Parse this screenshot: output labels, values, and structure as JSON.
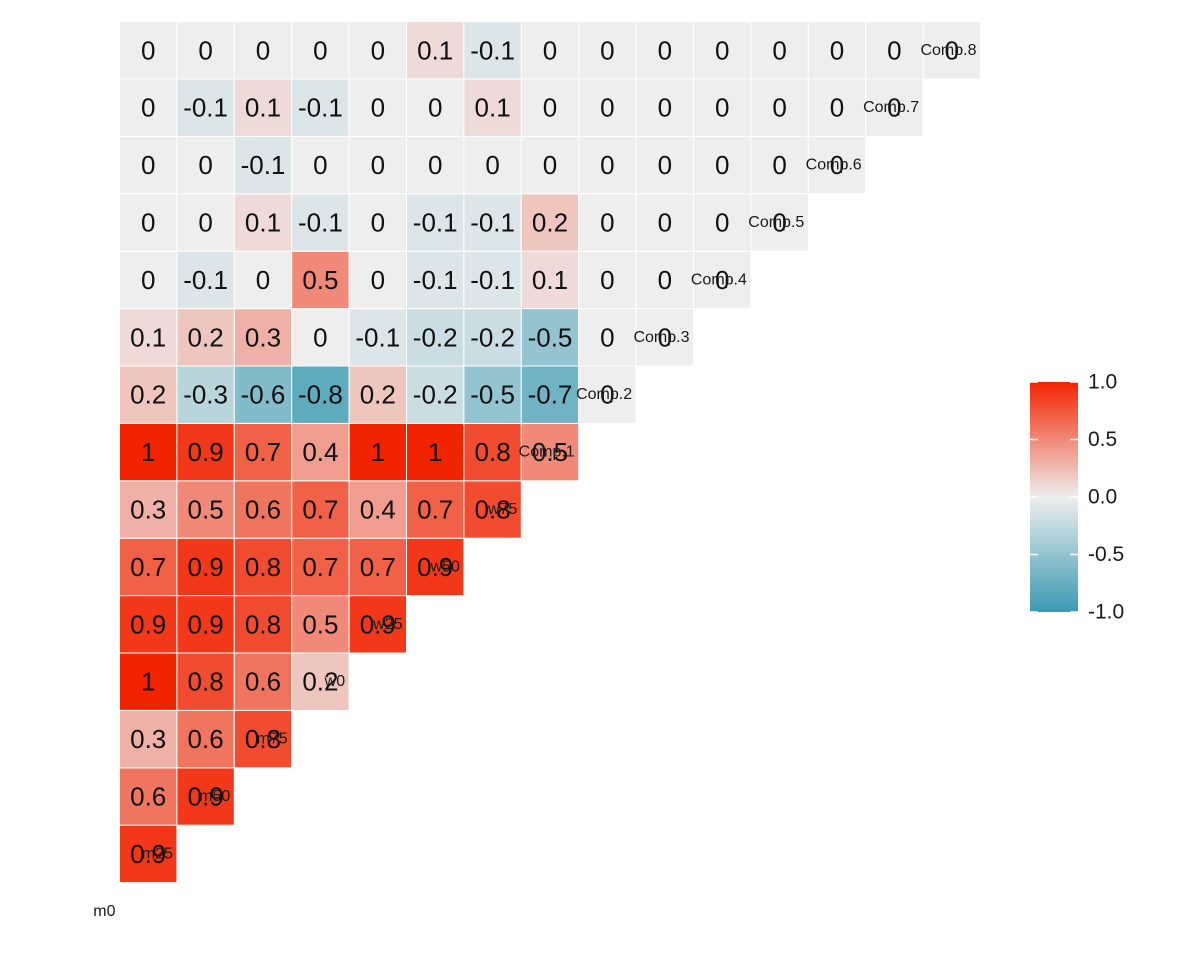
{
  "chart_data": {
    "type": "heatmap",
    "title": "",
    "variables": [
      "m0",
      "m25",
      "m50",
      "m75",
      "w0",
      "w25",
      "w50",
      "w75",
      "Comp.1",
      "Comp.2",
      "Comp.3",
      "Comp.4",
      "Comp.5",
      "Comp.6",
      "Comp.7",
      "Comp.8"
    ],
    "matrix": [
      [],
      [
        0.9
      ],
      [
        0.6,
        0.9
      ],
      [
        0.3,
        0.6,
        0.8
      ],
      [
        1,
        0.8,
        0.6,
        0.2
      ],
      [
        0.9,
        0.9,
        0.8,
        0.5,
        0.9
      ],
      [
        0.7,
        0.9,
        0.8,
        0.7,
        0.7,
        0.9
      ],
      [
        0.3,
        0.5,
        0.6,
        0.7,
        0.4,
        0.7,
        0.8
      ],
      [
        1,
        0.9,
        0.7,
        0.4,
        1,
        1,
        0.8,
        0.5
      ],
      [
        0.2,
        -0.3,
        -0.6,
        -0.8,
        0.2,
        -0.2,
        -0.5,
        -0.7,
        0
      ],
      [
        0.1,
        0.2,
        0.3,
        0,
        -0.1,
        -0.2,
        -0.2,
        -0.5,
        0,
        0
      ],
      [
        0,
        -0.1,
        0,
        0.5,
        0,
        -0.1,
        -0.1,
        0.1,
        0,
        0,
        0
      ],
      [
        0,
        0,
        0.1,
        -0.1,
        0,
        -0.1,
        -0.1,
        0.2,
        0,
        0,
        0,
        0
      ],
      [
        0,
        0,
        -0.1,
        0,
        0,
        0,
        0,
        0,
        0,
        0,
        0,
        0,
        0
      ],
      [
        0,
        -0.1,
        0.1,
        -0.1,
        0,
        0,
        0.1,
        0,
        0,
        0,
        0,
        0,
        0,
        0
      ],
      [
        0,
        0,
        0,
        0,
        0,
        0.1,
        -0.1,
        0,
        0,
        0,
        0,
        0,
        0,
        0,
        0
      ]
    ],
    "value_range": [
      -1,
      1
    ],
    "colors": {
      "low": "#3a9ab2",
      "mid": "#eeeeee",
      "high": "#f22400"
    },
    "legend": {
      "position": "right",
      "ticks": [
        1.0,
        0.5,
        0.0,
        -0.5,
        -1.0
      ],
      "tick_labels": [
        "1.0",
        "0.5",
        "0.0",
        "-0.5",
        "-1.0"
      ]
    }
  }
}
